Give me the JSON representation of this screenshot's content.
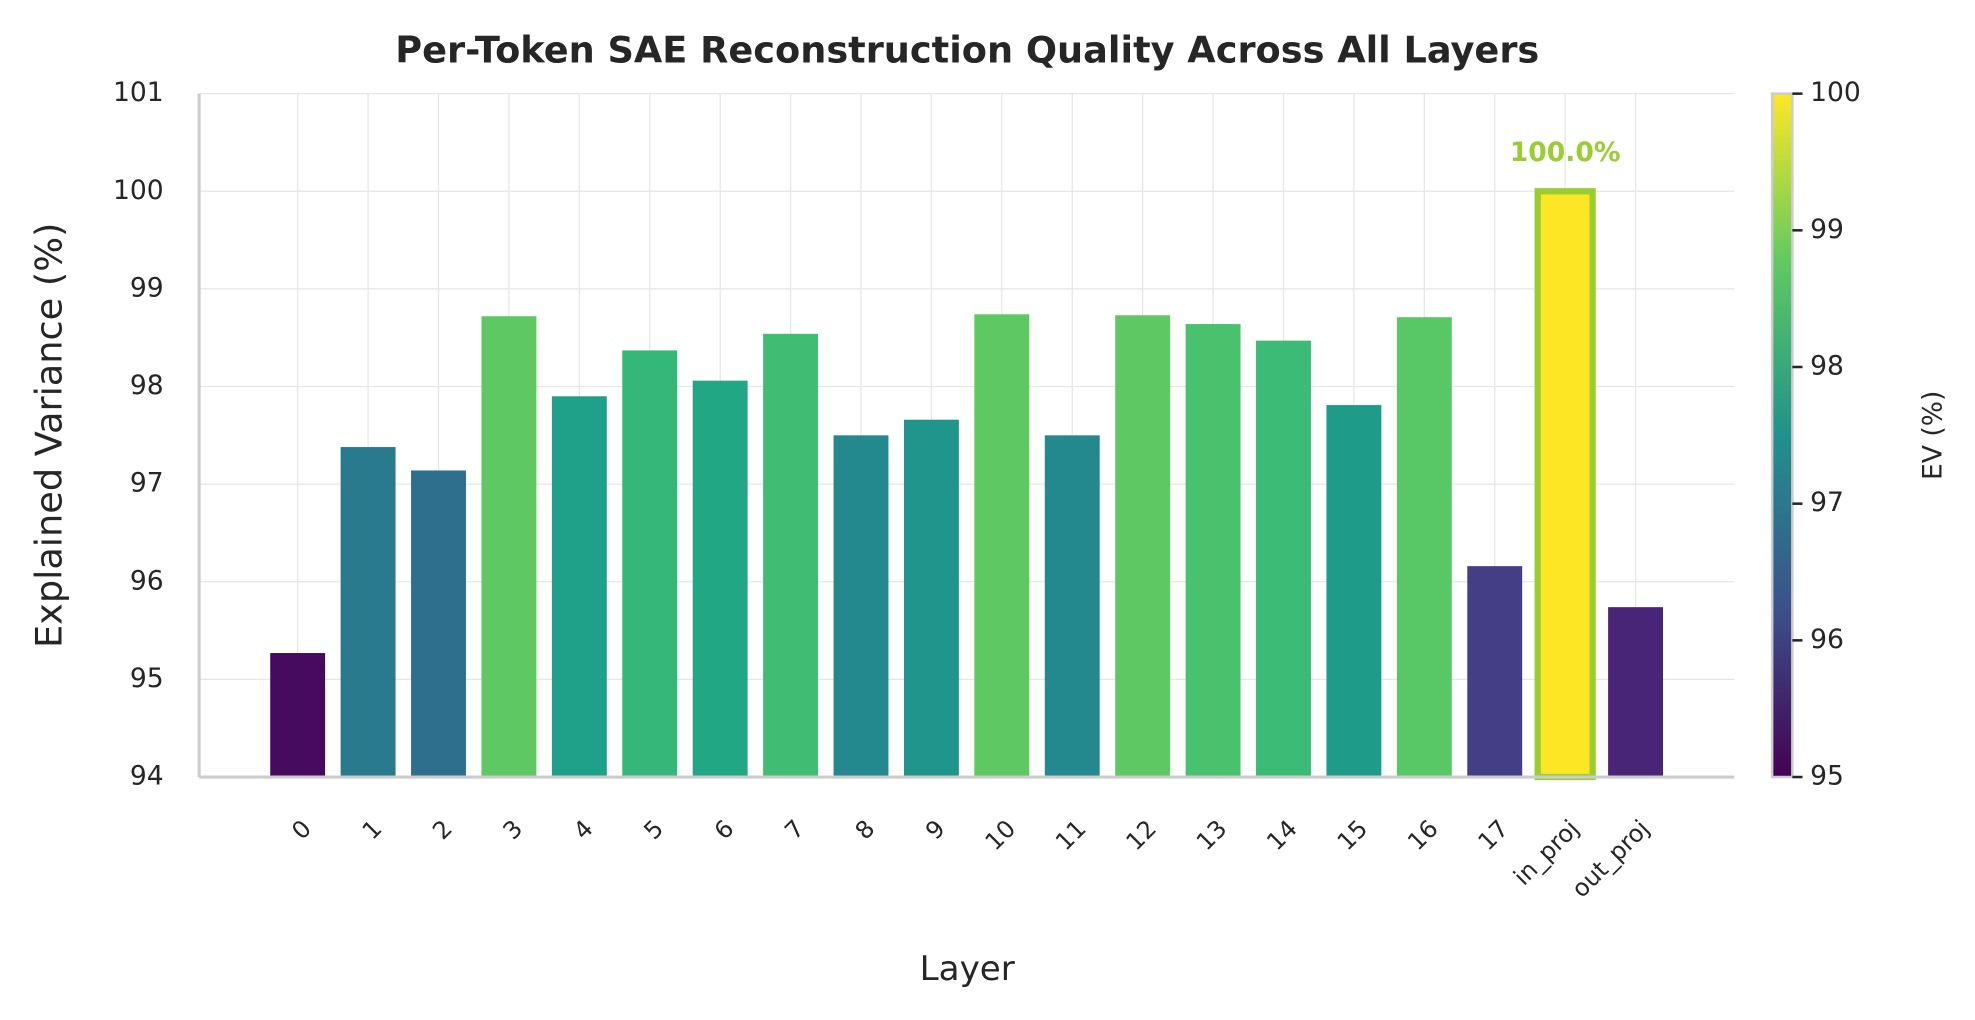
{
  "chart_data": {
    "type": "bar",
    "title": "Per-Token SAE Reconstruction Quality Across All Layers",
    "x_label": "Layer",
    "y_label": "Explained Variance (%)",
    "categories": [
      "0",
      "1",
      "2",
      "3",
      "4",
      "5",
      "6",
      "7",
      "8",
      "9",
      "10",
      "11",
      "12",
      "13",
      "14",
      "15",
      "16",
      "17",
      "in_proj",
      "out_proj"
    ],
    "values": [
      95.27,
      97.38,
      97.14,
      98.72,
      97.9,
      98.37,
      98.06,
      98.54,
      97.5,
      97.66,
      98.74,
      97.5,
      98.73,
      98.64,
      98.47,
      97.81,
      98.71,
      96.16,
      100.0,
      95.74
    ],
    "value_labels": [
      null,
      null,
      null,
      null,
      null,
      null,
      null,
      null,
      null,
      null,
      null,
      null,
      null,
      null,
      null,
      null,
      null,
      null,
      "100.0%",
      null
    ],
    "colors": [
      "#460b5e",
      "#2a7a8e",
      "#2e6f8e",
      "#5ec962",
      "#1fa088",
      "#35b779",
      "#22a785",
      "#40bd72",
      "#23898e",
      "#1f958b",
      "#5ec962",
      "#23898e",
      "#5ec962",
      "#4ac16d",
      "#3bbb75",
      "#1e9c89",
      "#58c765",
      "#433e85",
      "#fde725",
      "#482576"
    ],
    "highlight_color": "#9acd32",
    "ylim": [
      94,
      101
    ],
    "yticks": [
      94,
      95,
      96,
      97,
      98,
      99,
      100,
      101
    ],
    "grid": true,
    "colorbar": {
      "label": "EV (%)",
      "lim": [
        95,
        100
      ],
      "ticks": [
        95,
        96,
        97,
        98,
        99,
        100
      ]
    }
  }
}
